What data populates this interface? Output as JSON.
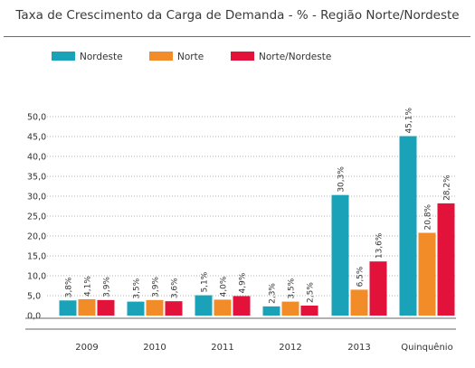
{
  "chart_data": {
    "type": "bar",
    "title": "Taxa de Crescimento da Carga de Demanda - % - Região Norte/Nordeste",
    "categories": [
      "2009",
      "2010",
      "2011",
      "2012",
      "2013",
      "Quinquênio"
    ],
    "series": [
      {
        "name": "Nordeste",
        "color": "#1aa3b8",
        "values": [
          3.8,
          3.5,
          5.1,
          2.3,
          30.3,
          45.1
        ],
        "labels": [
          "3,8%",
          "3,5%",
          "5,1%",
          "2,3%",
          "30,3%",
          "45,1%"
        ]
      },
      {
        "name": "Norte",
        "color": "#f28c28",
        "values": [
          4.1,
          3.9,
          4.0,
          3.5,
          6.5,
          20.8
        ],
        "labels": [
          "4,1%",
          "3,9%",
          "4,0%",
          "3,5%",
          "6,5%",
          "20,8%"
        ]
      },
      {
        "name": "Norte/Nordeste",
        "color": "#e2123b",
        "values": [
          3.9,
          3.6,
          4.9,
          2.5,
          13.6,
          28.2
        ],
        "labels": [
          "3,9%",
          "3,6%",
          "4,9%",
          "2,5%",
          "13,6%",
          "28,2%"
        ]
      }
    ],
    "yticks": [
      "0,0",
      "5,0",
      "10,0",
      "15,0",
      "20,0",
      "25,0",
      "30,0",
      "35,0",
      "40,0",
      "45,0",
      "50,0"
    ],
    "ylim": [
      0,
      50
    ],
    "grid": "horizontal dotted",
    "legend": "top-left"
  }
}
